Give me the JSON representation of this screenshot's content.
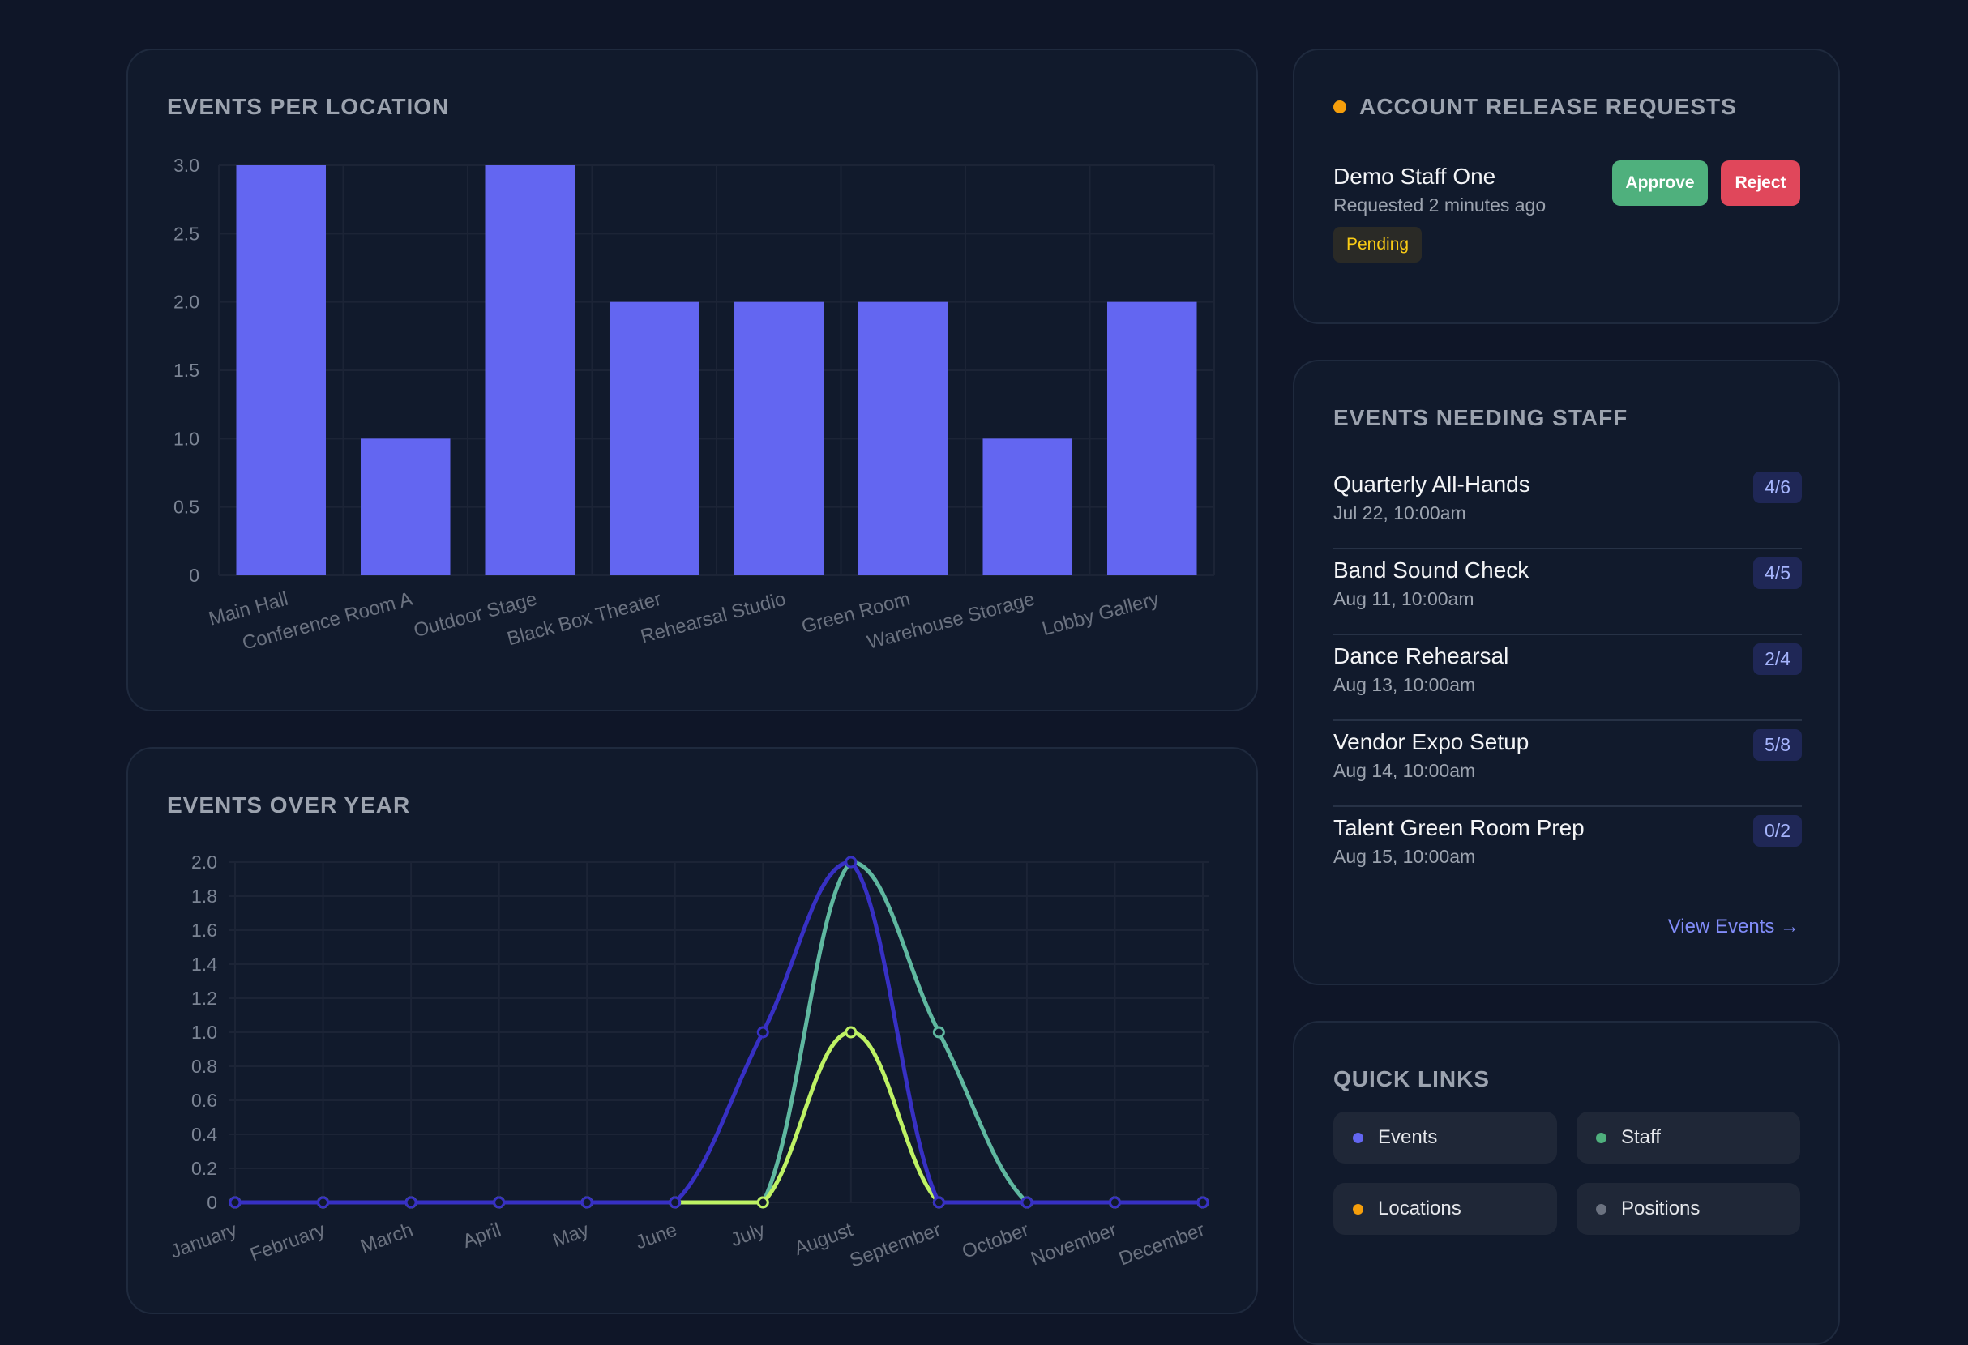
{
  "location_chart": {
    "title": "EVENTS PER LOCATION",
    "bar_color": "#6366f1"
  },
  "year_chart": {
    "title": "EVENTS OVER YEAR"
  },
  "release_requests": {
    "title": "ACCOUNT RELEASE REQUESTS",
    "dot_color": "#f59e0b",
    "items": [
      {
        "name": "Demo Staff One",
        "time": "Requested 2 minutes ago",
        "status": "Pending",
        "approve_label": "Approve",
        "reject_label": "Reject"
      }
    ]
  },
  "events_needing_staff": {
    "title": "EVENTS NEEDING STAFF",
    "items": [
      {
        "name": "Quarterly All-Hands",
        "date": "Jul 22, 10:00am",
        "count": "4/6"
      },
      {
        "name": "Band Sound Check",
        "date": "Aug 11, 10:00am",
        "count": "4/5"
      },
      {
        "name": "Dance Rehearsal",
        "date": "Aug 13, 10:00am",
        "count": "2/4"
      },
      {
        "name": "Vendor Expo Setup",
        "date": "Aug 14, 10:00am",
        "count": "5/8"
      },
      {
        "name": "Talent Green Room Prep",
        "date": "Aug 15, 10:00am",
        "count": "0/2"
      }
    ],
    "view_link": "View Events →"
  },
  "quick_links": {
    "title": "QUICK LINKS",
    "items": [
      {
        "label": "Events",
        "color": "#6366f1"
      },
      {
        "label": "Staff",
        "color": "#4fb07d"
      },
      {
        "label": "Locations",
        "color": "#f59e0b"
      },
      {
        "label": "Positions",
        "color": "#6b7280"
      }
    ]
  },
  "chart_data": [
    {
      "type": "bar",
      "title": "EVENTS PER LOCATION",
      "categories": [
        "Main Hall",
        "Conference Room A",
        "Outdoor Stage",
        "Black Box Theater",
        "Rehearsal Studio",
        "Green Room",
        "Warehouse Storage",
        "Lobby Gallery"
      ],
      "values": [
        3,
        1,
        3,
        2,
        2,
        2,
        1,
        2
      ],
      "ylim": [
        0,
        3
      ],
      "yticks": [
        "0",
        "0.5",
        "1.0",
        "1.5",
        "2.0",
        "2.5",
        "3.0"
      ],
      "grid": true
    },
    {
      "type": "line",
      "title": "EVENTS OVER YEAR",
      "categories": [
        "January",
        "February",
        "March",
        "April",
        "May",
        "June",
        "July",
        "August",
        "September",
        "October",
        "November",
        "December"
      ],
      "series": [
        {
          "color": "#5fb8a0",
          "values": [
            0,
            0,
            0,
            0,
            0,
            0,
            0,
            2,
            1,
            0,
            0,
            0
          ]
        },
        {
          "color": "#bef264",
          "values": [
            0,
            0,
            0,
            0,
            0,
            0,
            0,
            1,
            0,
            0,
            0,
            0
          ]
        },
        {
          "color": "#3730c4",
          "values": [
            0,
            0,
            0,
            0,
            0,
            0,
            1,
            2,
            0,
            0,
            0,
            0
          ]
        }
      ],
      "ylim": [
        0,
        2
      ],
      "yticks": [
        "0",
        "0.2",
        "0.4",
        "0.6",
        "0.8",
        "1.0",
        "1.2",
        "1.4",
        "1.6",
        "1.8",
        "2.0"
      ],
      "grid": true
    }
  ]
}
